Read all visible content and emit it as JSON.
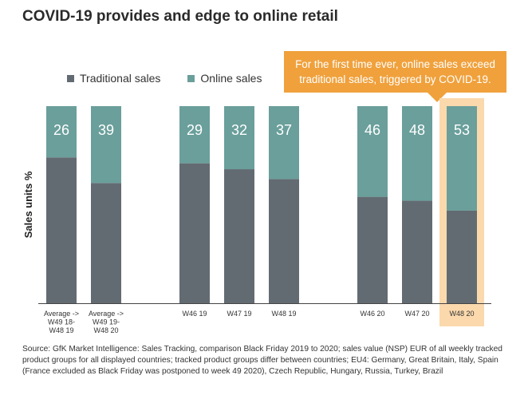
{
  "chart_data": {
    "type": "bar",
    "stacked": true,
    "title": "COVID-19 provides and edge to online retail",
    "ylabel": "Sales units %",
    "ylim": [
      0,
      100
    ],
    "categories": [
      [
        "Average ->",
        "W49 18-",
        "W48 19"
      ],
      [
        "Average ->",
        "W49 19-",
        "W48 20"
      ],
      [
        "W46 19"
      ],
      [
        "W47 19"
      ],
      [
        "W48 19"
      ],
      [
        "W46 20"
      ],
      [
        "W47 20"
      ],
      [
        "W48 20"
      ]
    ],
    "series": [
      {
        "name": "Traditional sales",
        "values": [
          74,
          61,
          71,
          68,
          63,
          54,
          52,
          47
        ],
        "color": "#636b72"
      },
      {
        "name": "Online sales",
        "values": [
          26,
          39,
          29,
          32,
          37,
          46,
          48,
          53
        ],
        "color": "#6a9f9b"
      }
    ],
    "highlight_index": 7,
    "highlight_color": "#fbd9ad",
    "legend_position": "top-left",
    "annotation": "For the first time ever, online sales exceed traditional sales, triggered by COVID-19."
  },
  "source": "Source: GfK Market Intelligence: Sales Tracking, comparison Black Friday 2019 to 2020; sales value (NSP) EUR of all weekly tracked product groups for all displayed countries; tracked product groups differ between countries; EU4: Germany, Great Britain, Italy, Spain (France excluded as Black Friday was postponed to week 49 2020), Czech Republic, Hungary, Russia, Turkey, Brazil"
}
